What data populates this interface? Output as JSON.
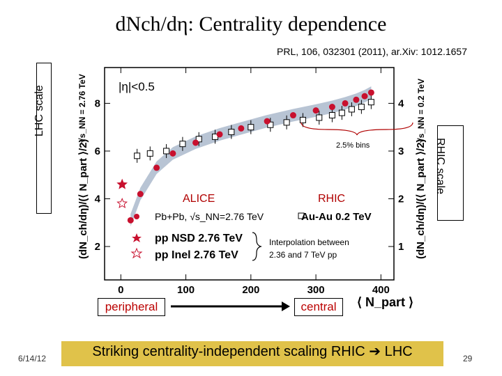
{
  "title": "dΝch/dη: Centrality dependence",
  "reference": "PRL, 106, 032301 (2011), ar.Xiv: 1012.1657",
  "side_labels": {
    "left": "LHC scale",
    "right": "RHIC scale"
  },
  "footer": "Striking centrality-independent scaling RHIC ➔ LHC",
  "date": "6/14/12",
  "page_number": "29",
  "bottom_labels": {
    "peripheral": "peripheral",
    "central": "central"
  },
  "colors": {
    "alice": "#c8102e",
    "band": "#b8c4d4",
    "footer_bg": "#e0c24a",
    "text_red": "#b00000"
  },
  "chart_data": {
    "type": "scatter",
    "xlabel": "⟨ N_part ⟩",
    "ylabel_left": "(dN_ch/dη)/(⟨ N_part ⟩/2)",
    "ylabel_left_top": "√s_NN = 2.76 TeV",
    "ylabel_right": "(dN_ch/dη)/(⟨ N_part ⟩/2)",
    "ylabel_right_top": "√s_NN = 0.2 TeV",
    "xlim": [
      -25,
      420
    ],
    "ylim_left": [
      0.6,
      9.5
    ],
    "ylim_right": [
      0.3,
      4.75
    ],
    "x_ticks": [
      0,
      100,
      200,
      300,
      400
    ],
    "x_tick_labels": [
      "0",
      "100",
      "200",
      "300",
      "400"
    ],
    "y_left_ticks": [
      2,
      4,
      6,
      8
    ],
    "y_left_tick_labels": [
      "2",
      "4",
      "6",
      "8"
    ],
    "y_right_ticks": [
      1,
      2,
      3,
      4
    ],
    "y_right_tick_labels": [
      "1",
      "2",
      "3",
      "4"
    ],
    "annotations": {
      "eta_cut": "|η|<0.5",
      "bins": "2.5% bins",
      "alice": "ALICE",
      "rhic": "RHIC",
      "interp": "Interpolation between",
      "interp2": "2.36 and 7 TeV pp"
    },
    "legend": {
      "pbpb": "Pb+Pb, √s_NN=2.76 TeV",
      "auau": "Au-Au  0.2 TeV",
      "pp_nsd": "pp NSD 2.76 TeV",
      "pp_inel": "pp Inel 2.76 TeV"
    },
    "series": [
      {
        "name": "Pb+Pb, √s_NN=2.76 TeV",
        "x": [
          15,
          30,
          55,
          80,
          115,
          152,
          185,
          225,
          265,
          300,
          325,
          345,
          362,
          375,
          385
        ],
        "y": [
          3.1,
          4.2,
          5.3,
          5.9,
          6.35,
          6.7,
          6.95,
          7.25,
          7.5,
          7.7,
          7.85,
          8.0,
          8.15,
          8.3,
          8.45
        ]
      },
      {
        "name": "Au-Au  0.2 TeV",
        "x": [
          25,
          45,
          70,
          95,
          120,
          145,
          170,
          200,
          230,
          255,
          280,
          305,
          325,
          340,
          355,
          370,
          385
        ],
        "y": [
          5.8,
          5.9,
          6.0,
          6.3,
          6.5,
          6.6,
          6.8,
          7.0,
          7.1,
          7.2,
          7.3,
          7.4,
          7.5,
          7.6,
          7.75,
          7.85,
          8.05
        ]
      },
      {
        "name": "pp NSD 2.76 TeV",
        "x": [
          2
        ],
        "y": [
          4.6
        ]
      },
      {
        "name": "pp Inel 2.76 TeV",
        "x": [
          2
        ],
        "y": [
          3.8
        ]
      }
    ]
  }
}
